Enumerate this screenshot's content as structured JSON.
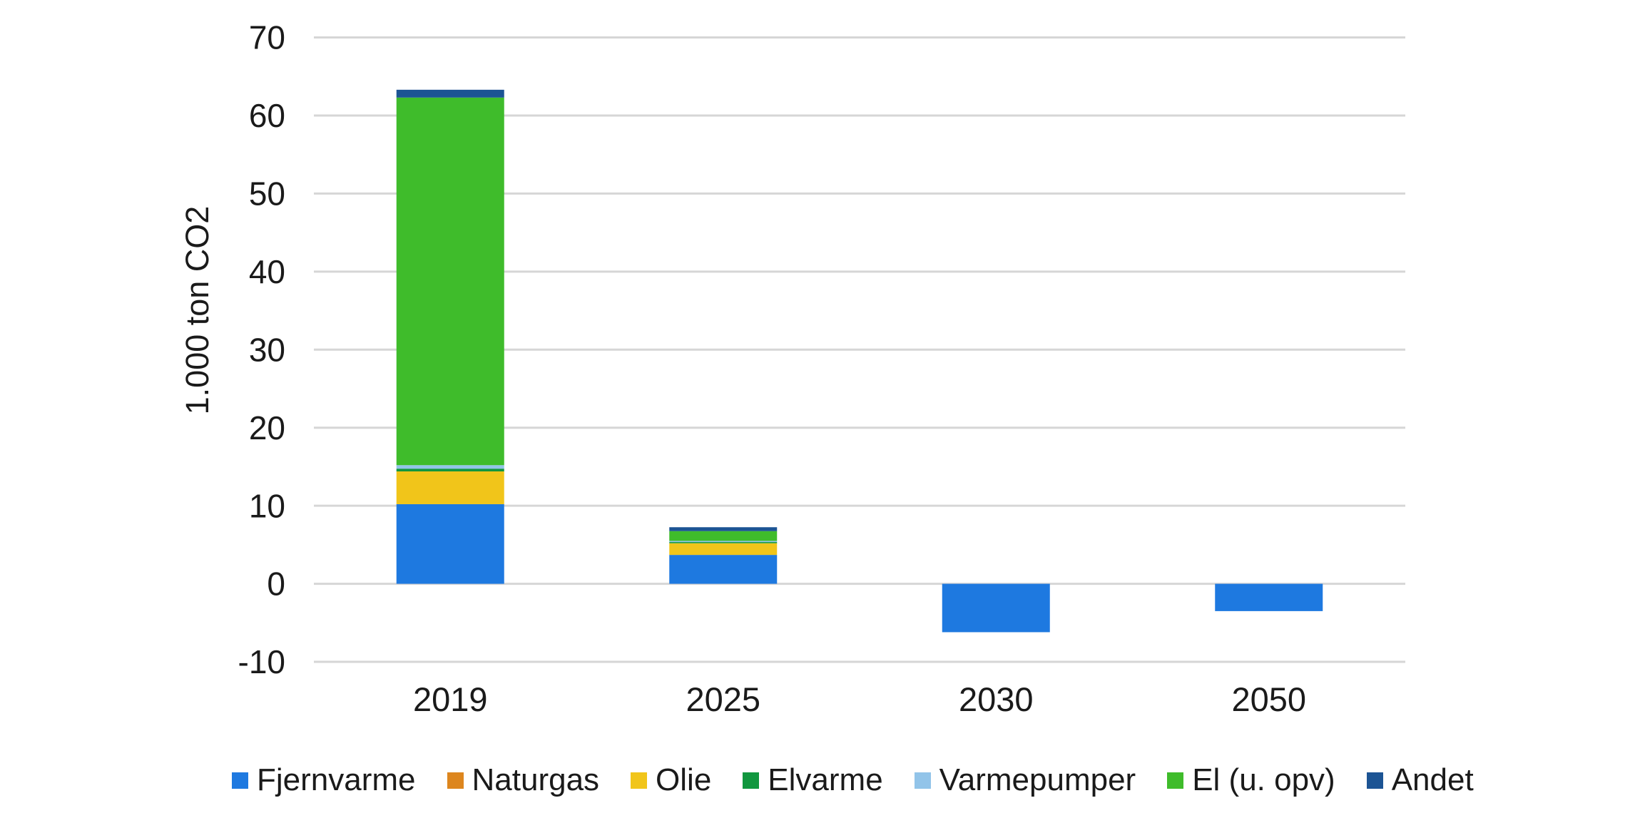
{
  "chart_data": {
    "type": "bar",
    "stacked": true,
    "categories": [
      "2019",
      "2025",
      "2030",
      "2050"
    ],
    "series": [
      {
        "name": "Fjernvarme",
        "color": "#1e79e0",
        "values": [
          10.2,
          3.7,
          -6.2,
          -3.5
        ]
      },
      {
        "name": "Naturgas",
        "color": "#dd861e",
        "values": [
          0,
          0,
          0,
          0
        ]
      },
      {
        "name": "Olie",
        "color": "#f1c51a",
        "values": [
          4.2,
          1.5,
          0,
          0
        ]
      },
      {
        "name": "Elvarme",
        "color": "#11973f",
        "values": [
          0.35,
          0.15,
          0,
          0
        ]
      },
      {
        "name": "Varmepumper",
        "color": "#92c4e9",
        "values": [
          0.45,
          0.15,
          0,
          0
        ]
      },
      {
        "name": "El (u. opv)",
        "color": "#3fbc2b",
        "values": [
          47.1,
          1.25,
          0,
          0
        ]
      },
      {
        "name": "Andet",
        "color": "#1c5494",
        "values": [
          1.0,
          0.5,
          0,
          0
        ]
      }
    ],
    "totals": [
      63.3,
      7.25,
      -6.2,
      -3.5
    ],
    "title": "",
    "xlabel": "",
    "ylabel": "1.000 ton CO2",
    "yticks": [
      70,
      60,
      50,
      40,
      30,
      20,
      10,
      0,
      -10
    ],
    "ylim": [
      -10,
      70
    ],
    "grid": true,
    "legend_position": "bottom"
  },
  "colors": {
    "grid": "#d6d6d6",
    "text": "#1a1a1a",
    "background": "#ffffff"
  }
}
